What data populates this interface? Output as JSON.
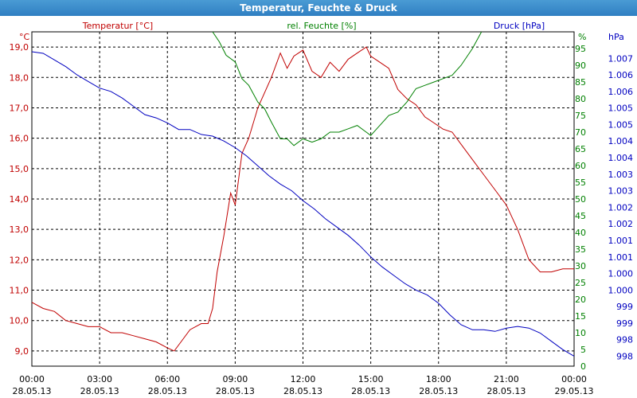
{
  "window": {
    "title": "Temperatur, Feuchte & Druck"
  },
  "colors": {
    "temperature": "#c00000",
    "humidity": "#008000",
    "pressure": "#0000c0",
    "grid": "#000000"
  },
  "chart_data": {
    "type": "line",
    "title": "Temperatur, Feuchte & Druck",
    "grid": true,
    "x_ticks": [
      {
        "time": "00:00",
        "date": "28.05.13"
      },
      {
        "time": "03:00",
        "date": "28.05.13"
      },
      {
        "time": "06:00",
        "date": "28.05.13"
      },
      {
        "time": "09:00",
        "date": "28.05.13"
      },
      {
        "time": "12:00",
        "date": "28.05.13"
      },
      {
        "time": "15:00",
        "date": "28.05.13"
      },
      {
        "time": "18:00",
        "date": "28.05.13"
      },
      {
        "time": "21:00",
        "date": "28.05.13"
      },
      {
        "time": "00:00",
        "date": "29.05.13"
      }
    ],
    "axes": {
      "temperature": {
        "series_label": "Temperatur [°C]",
        "unit": "°C",
        "range": [
          8.5,
          19.5
        ],
        "ticks": [
          "9,0",
          "10,0",
          "11,0",
          "12,0",
          "13,0",
          "14,0",
          "15,0",
          "16,0",
          "17,0",
          "18,0",
          "19,0"
        ]
      },
      "humidity": {
        "series_label": "rel. Feuchte [%]",
        "unit": "%",
        "range": [
          0,
          100
        ],
        "ticks": [
          "0",
          "5",
          "10",
          "15",
          "20",
          "25",
          "30",
          "35",
          "40",
          "45",
          "50",
          "55",
          "60",
          "65",
          "70",
          "75",
          "80",
          "85",
          "90",
          "95"
        ]
      },
      "pressure": {
        "series_label": "Druck [hPa]",
        "unit": "hPa",
        "range": [
          997.45,
          1007.55
        ],
        "ticks": [
          "998",
          "998",
          "999",
          "999",
          "1.000",
          "1.000",
          "1.001",
          "1.001",
          "1.002",
          "1.002",
          "1.003",
          "1.003",
          "1.004",
          "1.004",
          "1.005",
          "1.005",
          "1.006",
          "1.006",
          "1.007"
        ]
      }
    },
    "series": [
      {
        "name": "Temperatur [°C]",
        "axis": "temperature",
        "x": [
          0,
          0.5,
          1,
          1.5,
          2,
          2.5,
          3,
          3.5,
          4,
          4.5,
          5,
          5.5,
          6,
          6.3,
          6.6,
          7,
          7.5,
          7.8,
          8,
          8.2,
          8.5,
          8.8,
          9,
          9.3,
          9.6,
          10,
          10.3,
          10.6,
          11,
          11.3,
          11.6,
          12,
          12.4,
          12.8,
          13.2,
          13.6,
          14,
          14.4,
          14.8,
          15,
          15.4,
          15.8,
          16.2,
          16.6,
          17,
          17.4,
          17.8,
          18.2,
          18.6,
          19,
          19.5,
          20,
          20.5,
          21,
          21.5,
          22,
          22.5,
          23,
          23.5,
          24
        ],
        "y": [
          10.6,
          10.4,
          10.3,
          10.0,
          9.9,
          9.8,
          9.8,
          9.6,
          9.6,
          9.5,
          9.4,
          9.3,
          9.1,
          9.0,
          9.3,
          9.7,
          9.9,
          9.9,
          10.4,
          11.6,
          12.8,
          14.2,
          13.8,
          15.5,
          16.0,
          17.0,
          17.5,
          18.0,
          18.8,
          18.3,
          18.7,
          18.9,
          18.2,
          18.0,
          18.5,
          18.2,
          18.6,
          18.8,
          19.0,
          18.7,
          18.5,
          18.3,
          17.6,
          17.3,
          17.1,
          16.7,
          16.5,
          16.3,
          16.2,
          15.8,
          15.3,
          14.8,
          14.3,
          13.8,
          13.0,
          12.0,
          11.6,
          11.6,
          11.7,
          11.7
        ]
      },
      {
        "name": "rel. Feuchte [%]",
        "axis": "humidity",
        "x": [
          8,
          8.3,
          8.6,
          9,
          9.3,
          9.6,
          10,
          10.3,
          10.6,
          11,
          11.3,
          11.6,
          12,
          12.4,
          12.8,
          13.2,
          13.6,
          14,
          14.4,
          14.8,
          15,
          15.4,
          15.8,
          16.2,
          16.6,
          17,
          17.4,
          17.8,
          18.2,
          18.6,
          19,
          19.5,
          19.9
        ],
        "y": [
          100,
          97,
          93,
          91,
          86,
          84,
          79,
          77,
          73,
          68,
          68,
          66,
          68,
          67,
          68,
          70,
          70,
          71,
          72,
          70,
          69,
          72,
          75,
          76,
          79,
          83,
          84,
          85,
          86,
          87,
          90,
          95,
          100
        ]
      },
      {
        "name": "Druck [hPa]",
        "axis": "pressure",
        "x": [
          0,
          0.5,
          1,
          1.5,
          2,
          2.5,
          3,
          3.5,
          4,
          4.5,
          5,
          5.5,
          6,
          6.5,
          7,
          7.5,
          8,
          8.5,
          9,
          9.5,
          10,
          10.5,
          11,
          11.5,
          12,
          12.5,
          13,
          13.5,
          14,
          14.5,
          15,
          15.5,
          16,
          16.5,
          17,
          17.5,
          18,
          18.5,
          19,
          19.5,
          20,
          20.5,
          21,
          21.5,
          22,
          22.5,
          23,
          23.5,
          24
        ],
        "y": [
          1006.95,
          1006.9,
          1006.7,
          1006.5,
          1006.25,
          1006.05,
          1005.85,
          1005.75,
          1005.55,
          1005.3,
          1005.05,
          1004.95,
          1004.8,
          1004.6,
          1004.6,
          1004.45,
          1004.4,
          1004.25,
          1004.05,
          1003.8,
          1003.5,
          1003.2,
          1002.95,
          1002.75,
          1002.45,
          1002.2,
          1001.9,
          1001.65,
          1001.4,
          1001.1,
          1000.75,
          1000.45,
          1000.2,
          999.95,
          999.75,
          999.6,
          999.35,
          999.0,
          998.7,
          998.55,
          998.55,
          998.5,
          998.6,
          998.65,
          998.6,
          998.45,
          998.2,
          997.95,
          997.75
        ]
      }
    ]
  }
}
